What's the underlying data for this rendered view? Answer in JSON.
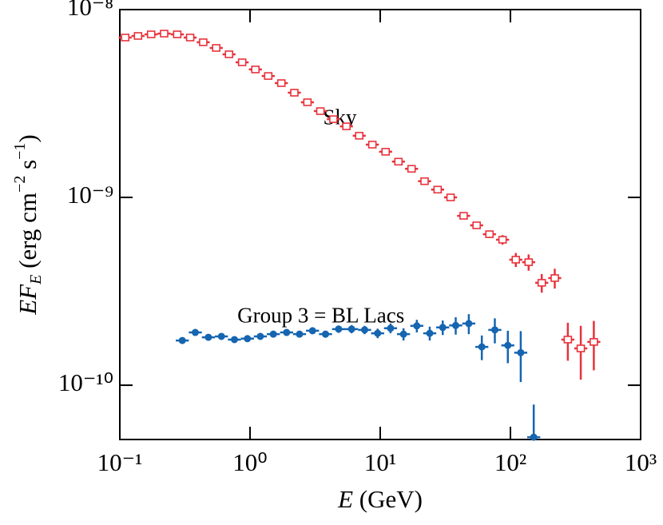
{
  "chart_data": {
    "type": "scatter",
    "x_label": [
      "E",
      " (GeV)"
    ],
    "y_label": [
      "EF",
      "E",
      " (erg cm",
      "−2",
      " s",
      "−1",
      ")"
    ],
    "log_x": true,
    "log_y": true,
    "xlim": [
      0.1,
      1000
    ],
    "ylim": [
      5.14e-11,
      1e-08
    ],
    "xticks": [
      {
        "value": 0.1,
        "label": "10⁻¹"
      },
      {
        "value": 1,
        "label": "10⁰"
      },
      {
        "value": 10,
        "label": "10¹"
      },
      {
        "value": 100,
        "label": "10²"
      },
      {
        "value": 1000,
        "label": "10³"
      }
    ],
    "yticks": [
      {
        "value": 1e-10,
        "label": "10⁻¹⁰"
      },
      {
        "value": 1e-09,
        "label": "10⁻⁹"
      },
      {
        "value": 1e-08,
        "label": "10⁻⁸"
      }
    ],
    "annotations": [
      {
        "text": "Sky",
        "x": 4.9,
        "y": 2.6e-09
      },
      {
        "text": "Group 3 = BL Lacs",
        "x": 3.5,
        "y": 2.3e-10
      }
    ],
    "series": [
      {
        "color": "#e8323c",
        "marker": "square",
        "x": [
          0.11,
          0.138,
          0.174,
          0.219,
          0.276,
          0.347,
          0.437,
          0.55,
          0.69,
          0.87,
          1.1,
          1.38,
          1.74,
          2.19,
          2.76,
          3.47,
          4.37,
          5.5,
          6.9,
          8.7,
          11,
          13.8,
          17.4,
          21.9,
          27.6,
          34.7,
          43.7,
          55,
          69,
          87,
          110,
          138,
          174,
          219,
          276,
          347,
          437
        ],
        "values": [
          7.1e-09,
          7.24e-09,
          7.38e-09,
          7.45e-09,
          7.38e-09,
          7.1e-09,
          6.7e-09,
          6.25e-09,
          5.78e-09,
          5.24e-09,
          4.8e-09,
          4.43e-09,
          4.06e-09,
          3.61e-09,
          3.21e-09,
          2.88e-09,
          2.61e-09,
          2.39e-09,
          2.13e-09,
          1.91e-09,
          1.75e-09,
          1.55e-09,
          1.42e-09,
          1.22e-09,
          1.1e-09,
          1e-09,
          7.98e-10,
          7.1e-10,
          6.37e-10,
          5.95e-10,
          4.66e-10,
          4.52e-10,
          3.51e-10,
          3.72e-10,
          1.75e-10,
          1.57e-10,
          1.7e-10
        ],
        "yerr": [
          1.4e-10,
          1.4e-10,
          1.4e-10,
          1.4e-10,
          1.4e-10,
          1.4e-10,
          1.3e-10,
          1.2e-10,
          1.2e-10,
          1.1e-10,
          1e-10,
          9e-11,
          8e-11,
          7e-11,
          7e-11,
          6e-11,
          5e-11,
          5e-11,
          4e-11,
          4e-11,
          4e-11,
          3e-11,
          3e-11,
          3e-11,
          3e-11,
          3e-11,
          2.5e-11,
          3e-11,
          3e-11,
          3.5e-11,
          4e-11,
          4.5e-11,
          4e-11,
          4.5e-11,
          4e-11,
          5e-11,
          5e-11
        ]
      },
      {
        "color": "#1565b0",
        "marker": "circle",
        "x": [
          0.302,
          0.38,
          0.479,
          0.603,
          0.759,
          0.955,
          1.2,
          1.51,
          1.91,
          2.4,
          3.02,
          3.8,
          4.79,
          6.03,
          7.59,
          9.55,
          12,
          15.1,
          19.1,
          24,
          30.2,
          38,
          47.9,
          60.3,
          75.9,
          95.5,
          120,
          151
        ],
        "values": [
          1.73e-10,
          1.91e-10,
          1.8e-10,
          1.82e-10,
          1.75e-10,
          1.77e-10,
          1.82e-10,
          1.87e-10,
          1.91e-10,
          1.87e-10,
          1.95e-10,
          1.87e-10,
          1.99e-10,
          1.99e-10,
          1.97e-10,
          1.89e-10,
          2.01e-10,
          1.87e-10,
          2.07e-10,
          1.89e-10,
          2.03e-10,
          2.08e-10,
          2.13e-10,
          1.6e-10,
          1.97e-10,
          1.63e-10,
          1.49e-10,
          5.29e-11
        ],
        "yerr": [
          5e-12,
          5e-12,
          5e-12,
          5e-12,
          5e-12,
          5e-12,
          5e-12,
          6e-12,
          6e-12,
          7e-12,
          7e-12,
          8e-12,
          9e-12,
          1e-11,
          1e-11,
          1.1e-11,
          1.2e-11,
          1.4e-11,
          1.6e-11,
          1.6e-11,
          1.8e-11,
          2.2e-11,
          2.6e-11,
          2.4e-11,
          3e-11,
          3.2e-11,
          4.5e-11,
          2.6e-11
        ]
      }
    ]
  }
}
